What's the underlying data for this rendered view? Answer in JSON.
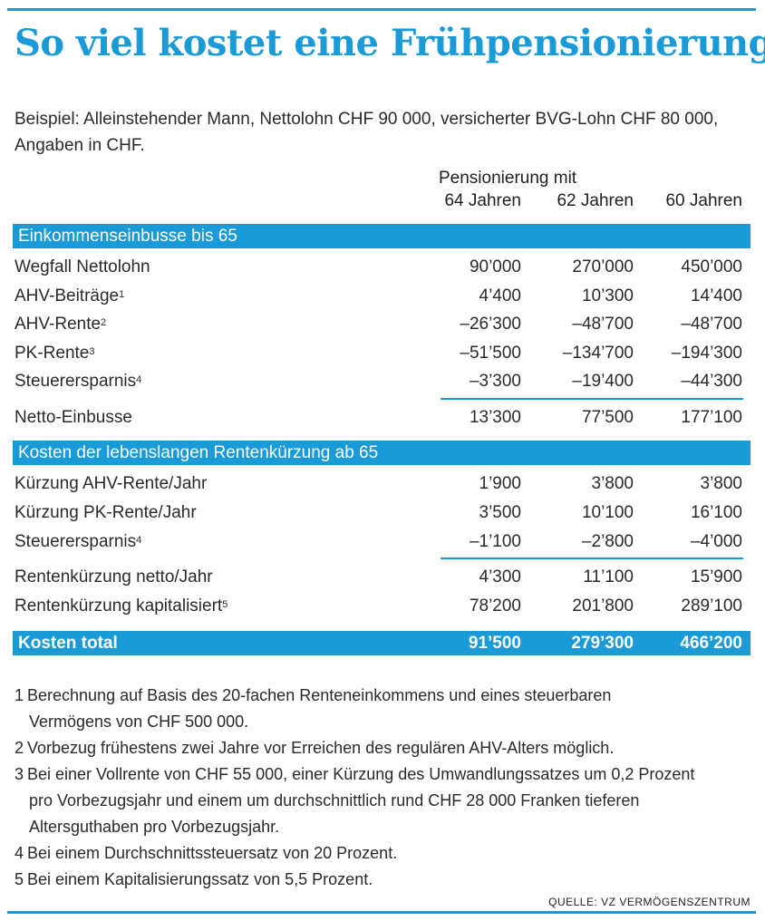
{
  "title": "So viel kostet eine Frühpensionierung",
  "intro": {
    "line1": "Beispiel: Alleinstehender Mann, Nettolohn CHF 90 000, versicherter BVG-Lohn CHF 80 000,",
    "line2": "Angaben in CHF."
  },
  "columns": {
    "group_label": "Pensionierung mit",
    "c1": "64 Jahren",
    "c2": "62 Jahren",
    "c3": "60 Jahren"
  },
  "section1": {
    "header": "Einkommenseinbusse bis 65",
    "rows": [
      {
        "label": "Wegfall Nettolohn",
        "fn": "",
        "v1": "90’000",
        "v2": "270’000",
        "v3": "450’000"
      },
      {
        "label": "AHV-Beiträge",
        "fn": "1",
        "v1": "4’400",
        "v2": "10’300",
        "v3": "14’400"
      },
      {
        "label": "AHV-Rente",
        "fn": "2",
        "v1": "–26’300",
        "v2": "–48’700",
        "v3": "–48’700"
      },
      {
        "label": "PK-Rente",
        "fn": "3",
        "v1": "–51’500",
        "v2": "–134’700",
        "v3": "–194’300"
      },
      {
        "label": "Steuerersparnis",
        "fn": "4",
        "v1": "–3’300",
        "v2": "–19’400",
        "v3": "–44’300"
      }
    ],
    "total": {
      "label": "Netto-Einbusse",
      "v1": "13’300",
      "v2": "77’500",
      "v3": "177’100"
    }
  },
  "section2": {
    "header": "Kosten der lebenslangen Rentenkürzung ab 65",
    "rows": [
      {
        "label": "Kürzung AHV-Rente/Jahr",
        "fn": "",
        "v1": "1’900",
        "v2": "3’800",
        "v3": "3’800"
      },
      {
        "label": "Kürzung PK-Rente/Jahr",
        "fn": "",
        "v1": "3’500",
        "v2": "10’100",
        "v3": "16’100"
      },
      {
        "label": "Steuerersparnis",
        "fn": "4",
        "v1": "–1’100",
        "v2": "–2’800",
        "v3": "–4’000"
      }
    ],
    "subtotal1": {
      "label": "Rentenkürzung netto/Jahr",
      "fn": "",
      "v1": "4’300",
      "v2": "11’100",
      "v3": "15’900"
    },
    "subtotal2": {
      "label": "Rentenkürzung kapitalisiert",
      "fn": "5",
      "v1": "78’200",
      "v2": "201’800",
      "v3": "289’100"
    }
  },
  "grand_total": {
    "label": "Kosten total",
    "v1": "91’500",
    "v2": "279’300",
    "v3": "466’200"
  },
  "footnotes": [
    {
      "num": "1",
      "lines": [
        "Berechnung auf Basis des 20-fachen Renteneinkommens und eines steuerbaren",
        "Vermögens von CHF 500 000."
      ]
    },
    {
      "num": "2",
      "lines": [
        "Vorbezug frühestens zwei Jahre vor Erreichen des regulären AHV-Alters möglich."
      ]
    },
    {
      "num": "3",
      "lines": [
        "Bei einer Vollrente von CHF 55 000, einer Kürzung des Umwandlungssatzes um 0,2 Prozent",
        "pro Vorbezugsjahr und einem um durchschnittlich rund CHF 28 000 Franken tieferen",
        "Altersguthaben pro Vorbezugsjahr."
      ]
    },
    {
      "num": "4",
      "lines": [
        "Bei einem Durchschnittssteuersatz von 20 Prozent."
      ]
    },
    {
      "num": "5",
      "lines": [
        "Bei einem Kapitalisierungssatz von 5,5 Prozent."
      ]
    }
  ],
  "source": "QUELLE: VZ VERMÖGENSZENTRUM",
  "colors": {
    "accent": "#1a9ad6",
    "text": "#2a2a2a"
  }
}
